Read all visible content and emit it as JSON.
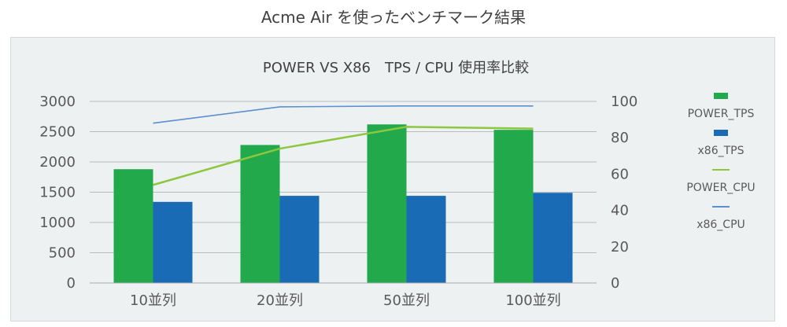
{
  "page": {
    "title": "Acme Air を使ったベンチマーク結果"
  },
  "chart_data": {
    "type": "bar",
    "title": "POWER VS X86　TPS / CPU 使用率比較",
    "categories": [
      "10並列",
      "20並列",
      "50並列",
      "100並列"
    ],
    "series": [
      {
        "name": "POWER_TPS",
        "type": "bar",
        "axis": "left",
        "color": "#21a94b",
        "values": [
          1880,
          2280,
          2620,
          2530
        ]
      },
      {
        "name": "x86_TPS",
        "type": "bar",
        "axis": "left",
        "color": "#1a6bb5",
        "values": [
          1340,
          1440,
          1440,
          1490
        ]
      },
      {
        "name": "POWER_CPU",
        "type": "line",
        "axis": "right",
        "color": "#8dc63f",
        "values": [
          54,
          74,
          86,
          85
        ]
      },
      {
        "name": "x86_CPU",
        "type": "line",
        "axis": "right",
        "color": "#5b8fd0",
        "values": [
          88,
          97,
          97.5,
          97.5
        ]
      }
    ],
    "y_left": {
      "min": 0,
      "max": 3000,
      "ticks": [
        0,
        500,
        1000,
        1500,
        2000,
        2500,
        3000
      ]
    },
    "y_right": {
      "min": 0,
      "max": 100,
      "ticks": [
        0,
        20,
        40,
        60,
        80,
        100
      ]
    },
    "grid": true,
    "legend_position": "right"
  }
}
